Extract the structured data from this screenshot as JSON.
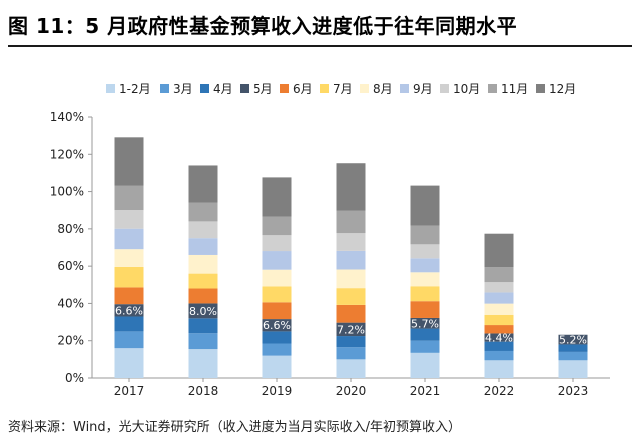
{
  "page": {
    "title": "图 11：5 月政府性基金预算收入进度低于往年同期水平",
    "source": "资料来源：Wind，光大证券研究所（收入进度为当月实际收入/年初预算收入）"
  },
  "chart_data": {
    "type": "bar",
    "stacked": true,
    "title": "",
    "xlabel": "",
    "ylabel": "",
    "ylim": [
      0,
      140
    ],
    "yticks": [
      "0%",
      "20%",
      "40%",
      "60%",
      "80%",
      "100%",
      "120%",
      "140%"
    ],
    "grid": false,
    "legend_position": "top",
    "categories": [
      "2017",
      "2018",
      "2019",
      "2020",
      "2021",
      "2022",
      "2023"
    ],
    "series": [
      {
        "name": "1-2月",
        "color": "#bdd7ee",
        "values": [
          16,
          15.5,
          12,
          10,
          13.5,
          9.5,
          9.5
        ]
      },
      {
        "name": "3月",
        "color": "#5b9bd5",
        "values": [
          9,
          8.5,
          6.5,
          6.5,
          6.5,
          5,
          4.5
        ]
      },
      {
        "name": "4月",
        "color": "#2e75b6",
        "values": [
          8,
          8,
          6.5,
          6,
          6.5,
          5,
          4
        ]
      },
      {
        "name": "5月",
        "color": "#44546a",
        "values": [
          6.6,
          8.0,
          6.6,
          7.2,
          5.7,
          4.4,
          5.2
        ]
      },
      {
        "name": "6月",
        "color": "#ed7d31",
        "values": [
          9,
          8,
          9,
          9.5,
          9,
          4.5,
          0
        ]
      },
      {
        "name": "7月",
        "color": "#ffd966",
        "values": [
          11,
          8,
          8.5,
          9,
          8,
          5.5,
          0
        ]
      },
      {
        "name": "8月",
        "color": "#fff2cc",
        "values": [
          9.5,
          10,
          9,
          10,
          7.5,
          6,
          0
        ]
      },
      {
        "name": "9月",
        "color": "#b4c7e7",
        "values": [
          11,
          9,
          10,
          10,
          7.5,
          6,
          0
        ]
      },
      {
        "name": "10月",
        "color": "#d0d0d0",
        "values": [
          10,
          9,
          8.5,
          9.5,
          7.5,
          5.5,
          0
        ]
      },
      {
        "name": "11月",
        "color": "#a5a5a5",
        "values": [
          13,
          10,
          10,
          12,
          10,
          8,
          0
        ]
      },
      {
        "name": "12月",
        "color": "#7f7f7f",
        "values": [
          26,
          20,
          21,
          25.5,
          21.5,
          18,
          0
        ]
      }
    ],
    "data_labels": {
      "series": "5月",
      "values": [
        "6.6%",
        "8.0%",
        "6.6%",
        "7.2%",
        "5.7%",
        "4.4%",
        "5.2%"
      ]
    }
  }
}
